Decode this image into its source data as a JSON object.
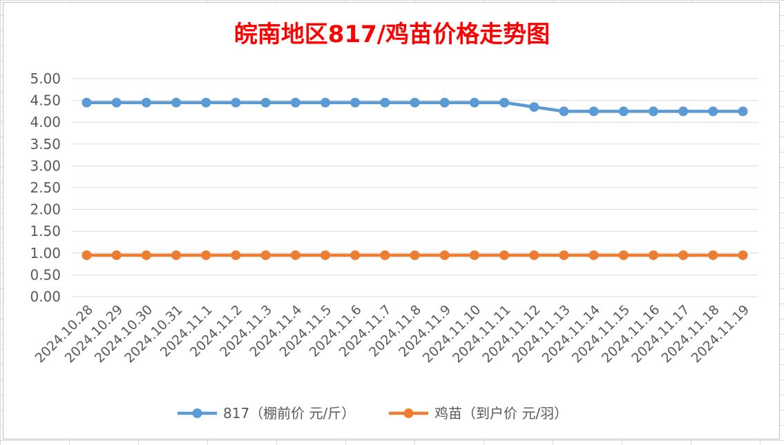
{
  "chart_data": {
    "type": "line",
    "title": "皖南地区817/鸡苗价格走势图",
    "categories": [
      "2024.10.28",
      "2024.10.29",
      "2024.10.30",
      "2024.10.31",
      "2024.11.1",
      "2024.11.2",
      "2024.11.3",
      "2024.11.4",
      "2024.11.5",
      "2024.11.6",
      "2024.11.7",
      "2024.11.8",
      "2024.11.9",
      "2024.11.10",
      "2024.11.11",
      "2024.11.12",
      "2024.11.13",
      "2024.11.14",
      "2024.11.15",
      "2024.11.16",
      "2024.11.17",
      "2024.11.18",
      "2024.11.19"
    ],
    "series": [
      {
        "name": "817（棚前价 元/斤）",
        "color": "#5b9bd5",
        "values": [
          4.45,
          4.45,
          4.45,
          4.45,
          4.45,
          4.45,
          4.45,
          4.45,
          4.45,
          4.45,
          4.45,
          4.45,
          4.45,
          4.45,
          4.45,
          4.35,
          4.25,
          4.25,
          4.25,
          4.25,
          4.25,
          4.25,
          4.25
        ]
      },
      {
        "name": "鸡苗（到户价 元/羽）",
        "color": "#ed7d31",
        "values": [
          0.95,
          0.95,
          0.95,
          0.95,
          0.95,
          0.95,
          0.95,
          0.95,
          0.95,
          0.95,
          0.95,
          0.95,
          0.95,
          0.95,
          0.95,
          0.95,
          0.95,
          0.95,
          0.95,
          0.95,
          0.95,
          0.95,
          0.95
        ]
      }
    ],
    "yticks": [
      "0.00",
      "0.50",
      "1.00",
      "1.50",
      "2.00",
      "2.50",
      "3.00",
      "3.50",
      "4.00",
      "4.50",
      "5.00"
    ],
    "ylim": [
      0,
      5
    ],
    "grid": true,
    "legend": "bottom"
  }
}
